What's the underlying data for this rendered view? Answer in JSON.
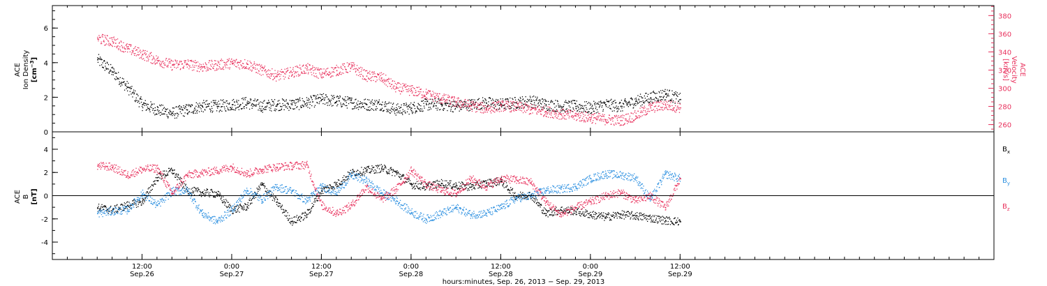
{
  "chart_data": [
    {
      "type": "scatter",
      "panel": "top",
      "left_axis": {
        "label_lines": [
          "ACE",
          "Ion Density"
        ],
        "unit_base": "cm",
        "unit_exp": "−3",
        "ylim": [
          0,
          7.3
        ],
        "ticks": [
          0,
          2,
          4,
          6
        ],
        "tick_labels": [
          "0",
          "2",
          "4",
          "6"
        ],
        "color": "#000000"
      },
      "right_axis": {
        "label_lines": [
          "ACE",
          "Velocity"
        ],
        "unit": "[km/s]",
        "ylim": [
          252,
          391
        ],
        "ticks": [
          260,
          280,
          300,
          320,
          340,
          360,
          380
        ],
        "tick_labels": [
          "260",
          "280",
          "300",
          "320",
          "340",
          "360",
          "380"
        ],
        "color": "#e8305c"
      },
      "series": [
        {
          "axis": "left",
          "color": "#000000",
          "x": [
            0,
            2,
            4,
            6,
            8,
            10,
            12,
            14,
            16,
            18,
            20,
            22,
            24,
            26,
            28,
            30,
            32,
            34,
            36,
            38,
            40,
            42,
            44,
            46,
            48,
            50,
            52,
            54,
            56,
            58,
            60,
            62,
            64,
            66,
            68,
            70,
            72,
            74,
            76,
            78
          ],
          "y": [
            4.2,
            3.5,
            2.6,
            1.6,
            1.3,
            1.1,
            1.3,
            1.5,
            1.5,
            1.6,
            1.7,
            1.5,
            1.6,
            1.6,
            1.7,
            1.9,
            1.8,
            1.7,
            1.6,
            1.6,
            1.3,
            1.4,
            1.6,
            1.6,
            1.5,
            1.6,
            1.7,
            1.6,
            1.7,
            1.8,
            1.6,
            1.5,
            1.5,
            1.4,
            1.6,
            1.5,
            1.8,
            2.0,
            2.2,
            1.9
          ]
        },
        {
          "axis": "right",
          "color": "#e8305c",
          "x": [
            0,
            2,
            4,
            6,
            8,
            10,
            12,
            14,
            16,
            18,
            20,
            22,
            24,
            26,
            28,
            30,
            32,
            34,
            36,
            38,
            40,
            42,
            44,
            46,
            48,
            50,
            52,
            54,
            56,
            58,
            60,
            62,
            64,
            66,
            68,
            70,
            72,
            74,
            76,
            78
          ],
          "y": [
            355,
            352,
            344,
            338,
            331,
            326,
            327,
            324,
            326,
            328,
            327,
            320,
            314,
            318,
            322,
            316,
            320,
            324,
            314,
            312,
            301,
            298,
            294,
            289,
            285,
            281,
            278,
            281,
            280,
            277,
            275,
            272,
            270,
            268,
            266,
            265,
            270,
            279,
            282,
            279
          ]
        }
      ]
    },
    {
      "type": "scatter",
      "panel": "bottom",
      "left_axis": {
        "label_lines": [
          "ACE",
          "B"
        ],
        "unit": "[nT]",
        "ylim": [
          -5.5,
          5.5
        ],
        "ticks": [
          -4,
          -2,
          0,
          2,
          4
        ],
        "tick_labels": [
          "-4",
          "-2",
          "0",
          "2",
          "4"
        ],
        "color": "#000000"
      },
      "zero_line": true,
      "series": [
        {
          "base": "B",
          "sub": "x",
          "color": "#000000",
          "x": [
            0,
            2,
            4,
            6,
            8,
            10,
            12,
            14,
            16,
            18,
            20,
            22,
            24,
            26,
            28,
            30,
            32,
            34,
            36,
            38,
            40,
            42,
            44,
            46,
            48,
            50,
            52,
            54,
            56,
            58,
            60,
            62,
            64,
            66,
            68,
            70,
            72,
            74,
            76,
            78
          ],
          "y": [
            -1.0,
            -1.2,
            -0.8,
            -0.5,
            1.6,
            2.2,
            0.5,
            0.3,
            0.2,
            -1.2,
            -0.9,
            1.0,
            -0.5,
            -2.2,
            -1.6,
            0.5,
            1.0,
            2.0,
            2.2,
            2.4,
            2.0,
            1.0,
            0.8,
            1.1,
            0.9,
            0.8,
            1.1,
            1.3,
            0.0,
            0.1,
            -1.5,
            -1.2,
            -1.3,
            -1.6,
            -1.8,
            -1.6,
            -1.7,
            -1.9,
            -2.1,
            -2.2
          ]
        },
        {
          "base": "B",
          "sub": "y",
          "color": "#2b8fe0",
          "x": [
            0,
            2,
            4,
            6,
            8,
            10,
            12,
            14,
            16,
            18,
            20,
            22,
            24,
            26,
            28,
            30,
            32,
            34,
            36,
            38,
            40,
            42,
            44,
            46,
            48,
            50,
            52,
            54,
            56,
            58,
            60,
            62,
            64,
            66,
            68,
            70,
            72,
            74,
            76,
            78
          ],
          "y": [
            -1.5,
            -1.3,
            -1.2,
            0.2,
            -0.8,
            0.4,
            0.5,
            -1.5,
            -2.2,
            -1.2,
            0.5,
            -0.3,
            0.8,
            0.4,
            -0.4,
            0.8,
            0.3,
            1.8,
            1.3,
            0.3,
            -0.4,
            -1.4,
            -2.0,
            -1.5,
            -1.0,
            -1.6,
            -1.5,
            -1.0,
            -0.2,
            0.0,
            0.5,
            0.6,
            0.8,
            1.5,
            1.9,
            1.8,
            1.6,
            -0.3,
            1.9,
            1.5
          ]
        },
        {
          "base": "B",
          "sub": "z",
          "color": "#e8305c",
          "x": [
            0,
            2,
            4,
            6,
            8,
            10,
            12,
            14,
            16,
            18,
            20,
            22,
            24,
            26,
            28,
            30,
            32,
            34,
            36,
            38,
            40,
            42,
            44,
            46,
            48,
            50,
            52,
            54,
            56,
            58,
            60,
            62,
            64,
            66,
            68,
            70,
            72,
            74,
            76,
            78
          ],
          "y": [
            2.6,
            2.5,
            1.8,
            2.3,
            2.4,
            0.2,
            1.8,
            2.0,
            2.2,
            2.5,
            1.9,
            2.3,
            2.5,
            2.6,
            2.7,
            -0.8,
            -1.5,
            -0.8,
            0.8,
            -0.3,
            0.6,
            2.2,
            1.0,
            0.5,
            0.2,
            1.5,
            0.8,
            1.5,
            1.4,
            1.2,
            -0.5,
            -1.6,
            -1.0,
            -0.5,
            0.0,
            0.3,
            -0.4,
            0.0,
            -1.0,
            1.5
          ]
        }
      ]
    }
  ],
  "x_axis": {
    "range_hours": [
      -6,
      120
    ],
    "ticks": [
      {
        "h": 6,
        "time": "12:00",
        "date": "Sep.26"
      },
      {
        "h": 18,
        "time": "0:00",
        "date": "Sep.27"
      },
      {
        "h": 30,
        "time": "12:00",
        "date": "Sep.27"
      },
      {
        "h": 42,
        "time": "0:00",
        "date": "Sep.28"
      },
      {
        "h": 54,
        "time": "12:00",
        "date": "Sep.28"
      },
      {
        "h": 66,
        "time": "0:00",
        "date": "Sep.29"
      },
      {
        "h": 78,
        "time": "12:00",
        "date": "Sep.29"
      }
    ],
    "title": "hours:minutes, Sep. 26, 2013 − Sep. 29, 2013"
  }
}
